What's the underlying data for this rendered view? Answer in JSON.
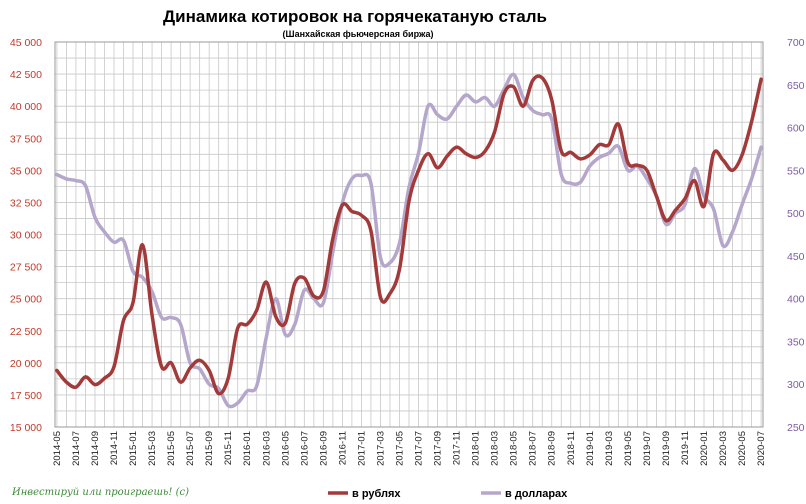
{
  "chart_data": {
    "type": "line",
    "title": "Динамика котировок на горячекатаную сталь",
    "subtitle": "(Шанхайская  фьючерсная  биржа)",
    "y_left": {
      "range": [
        15000,
        45000
      ],
      "ticks": [
        "15 000",
        "17 500",
        "20 000",
        "22 500",
        "25 000",
        "27 500",
        "30 000",
        "32 500",
        "35 000",
        "37 500",
        "40 000",
        "42 500",
        "45 000"
      ],
      "color": "#c0392b"
    },
    "y_right": {
      "range": [
        250,
        700
      ],
      "ticks": [
        "250",
        "300",
        "350",
        "400",
        "450",
        "500",
        "550",
        "600",
        "650",
        "700"
      ],
      "color": "#7d5ba6"
    },
    "x_tick_labels": [
      "2014-05",
      "2014-07",
      "2014-09",
      "2014-11",
      "2015-01",
      "2015-03",
      "2015-05",
      "2015-07",
      "2015-09",
      "2015-11",
      "2016-01",
      "2016-03",
      "2016-05",
      "2016-07",
      "2016-09",
      "2016-11",
      "2017-01",
      "2017-03",
      "2017-05",
      "2017-07",
      "2017-09",
      "2017-11",
      "2018-01",
      "2018-03",
      "2018-05",
      "2018-07",
      "2018-09",
      "2018-11",
      "2019-01",
      "2019-03",
      "2019-05",
      "2019-07",
      "2019-09",
      "2019-11",
      "2020-01",
      "2020-03",
      "2020-05",
      "2020-07"
    ],
    "grid": true,
    "legend_position": "bottom",
    "series": [
      {
        "name": "в рублях",
        "axis": "left",
        "color": "#a33a3a",
        "points": [
          {
            "x": "2014-05",
            "y": 19400
          },
          {
            "x": "2014-06",
            "y": 18500
          },
          {
            "x": "2014-07",
            "y": 18100
          },
          {
            "x": "2014-08",
            "y": 18900
          },
          {
            "x": "2014-09",
            "y": 18300
          },
          {
            "x": "2014-10",
            "y": 18800
          },
          {
            "x": "2014-11",
            "y": 19700
          },
          {
            "x": "2014-12",
            "y": 23300
          },
          {
            "x": "2015-01",
            "y": 24700
          },
          {
            "x": "2015-02",
            "y": 29200
          },
          {
            "x": "2015-03",
            "y": 23700
          },
          {
            "x": "2015-04",
            "y": 19700
          },
          {
            "x": "2015-05",
            "y": 20000
          },
          {
            "x": "2015-06",
            "y": 18500
          },
          {
            "x": "2015-07",
            "y": 19600
          },
          {
            "x": "2015-08",
            "y": 20200
          },
          {
            "x": "2015-09",
            "y": 19400
          },
          {
            "x": "2015-10",
            "y": 17600
          },
          {
            "x": "2015-11",
            "y": 18800
          },
          {
            "x": "2015-12",
            "y": 22700
          },
          {
            "x": "2016-01",
            "y": 23000
          },
          {
            "x": "2016-02",
            "y": 24100
          },
          {
            "x": "2016-03",
            "y": 26300
          },
          {
            "x": "2016-04",
            "y": 23600
          },
          {
            "x": "2016-05",
            "y": 23100
          },
          {
            "x": "2016-06",
            "y": 26200
          },
          {
            "x": "2016-07",
            "y": 26600
          },
          {
            "x": "2016-08",
            "y": 25200
          },
          {
            "x": "2016-09",
            "y": 25600
          },
          {
            "x": "2016-10",
            "y": 29700
          },
          {
            "x": "2016-11",
            "y": 32300
          },
          {
            "x": "2016-12",
            "y": 31800
          },
          {
            "x": "2017-01",
            "y": 31500
          },
          {
            "x": "2017-02",
            "y": 30300
          },
          {
            "x": "2017-03",
            "y": 25100
          },
          {
            "x": "2017-04",
            "y": 25400
          },
          {
            "x": "2017-05",
            "y": 27300
          },
          {
            "x": "2017-06",
            "y": 32600
          },
          {
            "x": "2017-07",
            "y": 35000
          },
          {
            "x": "2017-08",
            "y": 36300
          },
          {
            "x": "2017-09",
            "y": 35200
          },
          {
            "x": "2017-10",
            "y": 36100
          },
          {
            "x": "2017-11",
            "y": 36800
          },
          {
            "x": "2017-12",
            "y": 36300
          },
          {
            "x": "2018-01",
            "y": 36000
          },
          {
            "x": "2018-02",
            "y": 36500
          },
          {
            "x": "2018-03",
            "y": 38000
          },
          {
            "x": "2018-04",
            "y": 41000
          },
          {
            "x": "2018-05",
            "y": 41500
          },
          {
            "x": "2018-06",
            "y": 40000
          },
          {
            "x": "2018-07",
            "y": 42000
          },
          {
            "x": "2018-08",
            "y": 42200
          },
          {
            "x": "2018-09",
            "y": 40500
          },
          {
            "x": "2018-10",
            "y": 36500
          },
          {
            "x": "2018-11",
            "y": 36400
          },
          {
            "x": "2018-12",
            "y": 35900
          },
          {
            "x": "2019-01",
            "y": 36200
          },
          {
            "x": "2019-02",
            "y": 37000
          },
          {
            "x": "2019-03",
            "y": 37000
          },
          {
            "x": "2019-04",
            "y": 38600
          },
          {
            "x": "2019-05",
            "y": 35600
          },
          {
            "x": "2019-06",
            "y": 35400
          },
          {
            "x": "2019-07",
            "y": 35000
          },
          {
            "x": "2019-08",
            "y": 33000
          },
          {
            "x": "2019-09",
            "y": 31100
          },
          {
            "x": "2019-10",
            "y": 31900
          },
          {
            "x": "2019-11",
            "y": 32800
          },
          {
            "x": "2019-12",
            "y": 34200
          },
          {
            "x": "2020-01",
            "y": 32200
          },
          {
            "x": "2020-02",
            "y": 36300
          },
          {
            "x": "2020-03",
            "y": 35800
          },
          {
            "x": "2020-04",
            "y": 35000
          },
          {
            "x": "2020-05",
            "y": 36200
          },
          {
            "x": "2020-06",
            "y": 38800
          },
          {
            "x": "2020-07",
            "y": 42100
          }
        ]
      },
      {
        "name": "в долларах",
        "axis": "right",
        "color": "#b5a6cc",
        "points": [
          {
            "x": "2014-05",
            "y": 545
          },
          {
            "x": "2014-06",
            "y": 540
          },
          {
            "x": "2014-07",
            "y": 538
          },
          {
            "x": "2014-08",
            "y": 532
          },
          {
            "x": "2014-09",
            "y": 495
          },
          {
            "x": "2014-10",
            "y": 478
          },
          {
            "x": "2014-11",
            "y": 466
          },
          {
            "x": "2014-12",
            "y": 468
          },
          {
            "x": "2015-01",
            "y": 432
          },
          {
            "x": "2015-02",
            "y": 425
          },
          {
            "x": "2015-03",
            "y": 408
          },
          {
            "x": "2015-04",
            "y": 378
          },
          {
            "x": "2015-05",
            "y": 378
          },
          {
            "x": "2015-06",
            "y": 370
          },
          {
            "x": "2015-07",
            "y": 325
          },
          {
            "x": "2015-08",
            "y": 318
          },
          {
            "x": "2015-09",
            "y": 300
          },
          {
            "x": "2015-10",
            "y": 295
          },
          {
            "x": "2015-11",
            "y": 275
          },
          {
            "x": "2015-12",
            "y": 278
          },
          {
            "x": "2016-01",
            "y": 292
          },
          {
            "x": "2016-02",
            "y": 298
          },
          {
            "x": "2016-03",
            "y": 355
          },
          {
            "x": "2016-04",
            "y": 400
          },
          {
            "x": "2016-05",
            "y": 358
          },
          {
            "x": "2016-06",
            "y": 370
          },
          {
            "x": "2016-07",
            "y": 410
          },
          {
            "x": "2016-08",
            "y": 400
          },
          {
            "x": "2016-09",
            "y": 395
          },
          {
            "x": "2016-10",
            "y": 455
          },
          {
            "x": "2016-11",
            "y": 512
          },
          {
            "x": "2016-12",
            "y": 540
          },
          {
            "x": "2017-01",
            "y": 544
          },
          {
            "x": "2017-02",
            "y": 535
          },
          {
            "x": "2017-03",
            "y": 448
          },
          {
            "x": "2017-04",
            "y": 442
          },
          {
            "x": "2017-05",
            "y": 465
          },
          {
            "x": "2017-06",
            "y": 530
          },
          {
            "x": "2017-07",
            "y": 570
          },
          {
            "x": "2017-08",
            "y": 625
          },
          {
            "x": "2017-09",
            "y": 615
          },
          {
            "x": "2017-10",
            "y": 610
          },
          {
            "x": "2017-11",
            "y": 625
          },
          {
            "x": "2017-12",
            "y": 638
          },
          {
            "x": "2018-01",
            "y": 630
          },
          {
            "x": "2018-02",
            "y": 635
          },
          {
            "x": "2018-03",
            "y": 625
          },
          {
            "x": "2018-04",
            "y": 645
          },
          {
            "x": "2018-05",
            "y": 662
          },
          {
            "x": "2018-06",
            "y": 635
          },
          {
            "x": "2018-07",
            "y": 620
          },
          {
            "x": "2018-08",
            "y": 615
          },
          {
            "x": "2018-09",
            "y": 610
          },
          {
            "x": "2018-10",
            "y": 545
          },
          {
            "x": "2018-11",
            "y": 535
          },
          {
            "x": "2018-12",
            "y": 536
          },
          {
            "x": "2019-01",
            "y": 555
          },
          {
            "x": "2019-02",
            "y": 565
          },
          {
            "x": "2019-03",
            "y": 570
          },
          {
            "x": "2019-04",
            "y": 578
          },
          {
            "x": "2019-05",
            "y": 550
          },
          {
            "x": "2019-06",
            "y": 555
          },
          {
            "x": "2019-07",
            "y": 540
          },
          {
            "x": "2019-08",
            "y": 520
          },
          {
            "x": "2019-09",
            "y": 487
          },
          {
            "x": "2019-10",
            "y": 500
          },
          {
            "x": "2019-11",
            "y": 510
          },
          {
            "x": "2019-12",
            "y": 552
          },
          {
            "x": "2020-01",
            "y": 520
          },
          {
            "x": "2020-02",
            "y": 505
          },
          {
            "x": "2020-03",
            "y": 462
          },
          {
            "x": "2020-04",
            "y": 478
          },
          {
            "x": "2020-05",
            "y": 510
          },
          {
            "x": "2020-06",
            "y": 540
          },
          {
            "x": "2020-07",
            "y": 577
          }
        ]
      }
    ]
  },
  "watermark": "Инвестируй или проиграешь! (c)"
}
